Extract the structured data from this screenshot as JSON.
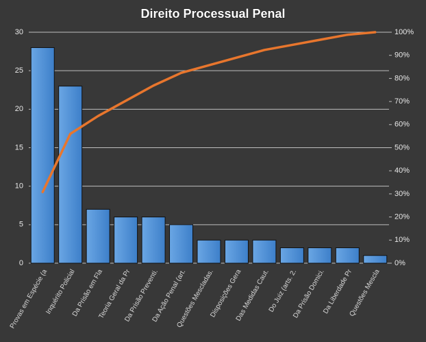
{
  "chart_data": {
    "type": "pareto",
    "title": "Direito  Processual  Penal",
    "categories": [
      "Provas em Espécie (a",
      "Inquérito Policial",
      "Da Prisão em Fla",
      "Teoria Geral da Pr",
      "Da Prisão Preventi.",
      "Da Ação Penal (art.",
      "Questões Mescladas.",
      "Disposições Gera",
      "Das Medidas Caut.",
      "Do Juiz (arts. 2.",
      "Da Prisão Domici.",
      "Da Liberdade Pr",
      "Questões Mescla"
    ],
    "series": [
      {
        "type": "bar",
        "color": "#4f8fd6",
        "values": [
          28,
          23,
          7,
          6,
          6,
          5,
          3,
          3,
          3,
          2,
          2,
          2,
          1
        ]
      },
      {
        "type": "line",
        "color": "#e8762d",
        "axis": "y2",
        "values": [
          30.8,
          56.0,
          63.7,
          70.3,
          76.9,
          82.4,
          85.7,
          89.0,
          92.3,
          94.5,
          96.7,
          98.9,
          100
        ]
      }
    ],
    "ylim": [
      0,
      30
    ],
    "yticks": [
      0,
      5,
      10,
      15,
      20,
      25,
      30
    ],
    "y2lim": [
      0,
      100
    ],
    "y2ticks": [
      {
        "value": 0,
        "label": "0%"
      },
      {
        "value": 10,
        "label": "10%"
      },
      {
        "value": 20,
        "label": "20%"
      },
      {
        "value": 30,
        "label": "30%"
      },
      {
        "value": 40,
        "label": "40%"
      },
      {
        "value": 50,
        "label": "50%"
      },
      {
        "value": 60,
        "label": "60%"
      },
      {
        "value": 70,
        "label": "70%"
      },
      {
        "value": 80,
        "label": "80%"
      },
      {
        "value": 90,
        "label": "90%"
      },
      {
        "value": 100,
        "label": "100%"
      }
    ],
    "grid": true
  }
}
